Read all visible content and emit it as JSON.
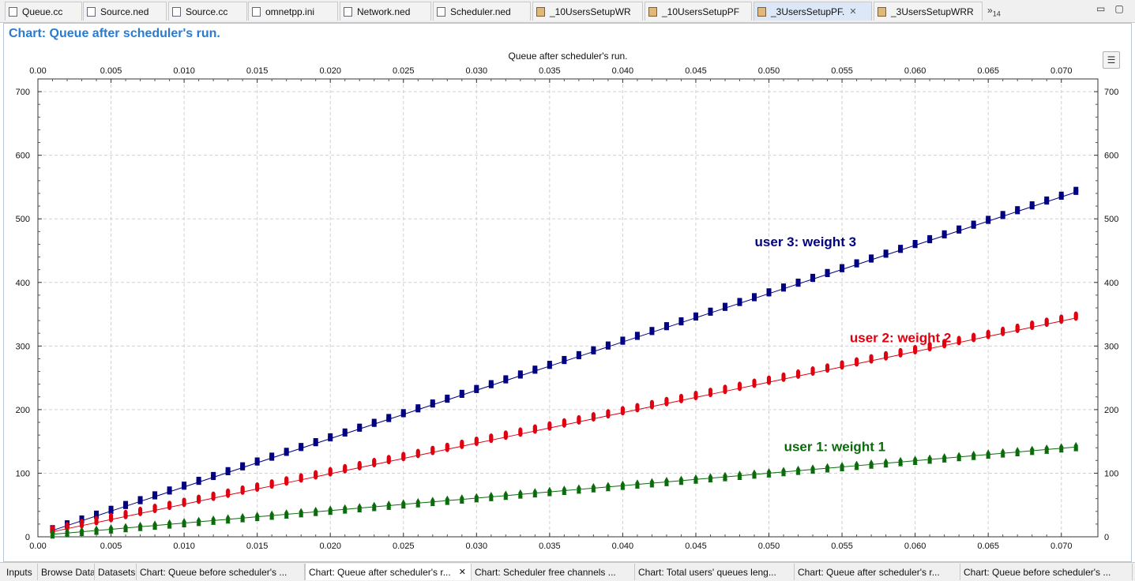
{
  "editor_tabs": [
    {
      "label": "Queue.cc",
      "icon": "source-file-icon"
    },
    {
      "label": "Source.ned",
      "icon": "ned-file-icon"
    },
    {
      "label": "Source.cc",
      "icon": "source-file-icon"
    },
    {
      "label": "omnetpp.ini",
      "icon": "ini-file-icon"
    },
    {
      "label": "Network.ned",
      "icon": "ned-file-icon"
    },
    {
      "label": "Scheduler.ned",
      "icon": "ned-file-icon"
    },
    {
      "label": "_10UsersSetupWR",
      "icon": "analysis-file-icon"
    },
    {
      "label": "_10UsersSetupPF",
      "icon": "analysis-file-icon"
    },
    {
      "label": "_3UsersSetupPF.",
      "icon": "analysis-file-icon",
      "active": true
    },
    {
      "label": "_3UsersSetupWRR",
      "icon": "analysis-file-icon"
    }
  ],
  "overflow_marker": "»",
  "overflow_count": "14",
  "window_controls": {
    "minimize": "▭",
    "maximize": "▢"
  },
  "chart_header": "Chart: Queue after scheduler's run.",
  "legend_button_icon": "☰",
  "bottom_tabs": [
    {
      "label": "Inputs"
    },
    {
      "label": "Browse Data"
    },
    {
      "label": "Datasets"
    },
    {
      "label": "Chart: Queue before scheduler's ..."
    },
    {
      "label": "Chart: Queue after scheduler's r...",
      "active": true
    },
    {
      "label": "Chart: Scheduler free channels ..."
    },
    {
      "label": "Chart: Total users' queues leng..."
    },
    {
      "label": "Chart: Queue after scheduler's r..."
    },
    {
      "label": "Chart: Queue before scheduler's ..."
    }
  ],
  "close_glyph": "✕",
  "chart_data": {
    "type": "line",
    "title": "Queue after scheduler's run.",
    "xlabel": "",
    "ylabel": "",
    "xlim": [
      0,
      0.0725
    ],
    "ylim": [
      0,
      720
    ],
    "x_ticks": [
      0.0,
      0.005,
      0.01,
      0.015,
      0.02,
      0.025,
      0.03,
      0.035,
      0.04,
      0.045,
      0.05,
      0.055,
      0.06,
      0.065,
      0.07
    ],
    "x_tick_labels": [
      "0.00",
      "0.005",
      "0.010",
      "0.015",
      "0.020",
      "0.025",
      "0.030",
      "0.035",
      "0.040",
      "0.045",
      "0.050",
      "0.055",
      "0.060",
      "0.065",
      "0.070"
    ],
    "y_ticks": [
      0,
      100,
      200,
      300,
      400,
      500,
      600,
      700
    ],
    "y_tick_labels": [
      "0",
      "100",
      "200",
      "300",
      "400",
      "500",
      "600",
      "700"
    ],
    "grid": true,
    "mirror_axes": true,
    "x_sampling": {
      "start": 0.001,
      "step": 0.001,
      "count": 71
    },
    "series": [
      {
        "color": "#000080",
        "marker": "square",
        "start": 10,
        "slope_per_ms": 7.6,
        "cluster": [
          0,
          1
        ],
        "cluster_spacing": 4
      },
      {
        "color": "#e0000f",
        "marker": "capsule",
        "start": 8,
        "slope_per_ms": 4.8,
        "cluster": [
          0,
          1,
          2,
          3
        ],
        "cluster_spacing": 2
      },
      {
        "color": "#0a6b0a",
        "marker": "triangle",
        "start": 4,
        "slope_per_ms": 1.96,
        "cluster": [
          -2,
          -1,
          0,
          1,
          2
        ],
        "cluster_spacing": 2
      }
    ],
    "annotations": [
      {
        "text": "user 3: weight 3",
        "x": 0.0525,
        "y": 457,
        "color": "#000080"
      },
      {
        "text": "user 2: weight 2",
        "x": 0.059,
        "y": 306,
        "color": "#e0000f"
      },
      {
        "text": "user 1: weight 1",
        "x": 0.0545,
        "y": 135,
        "color": "#0a6b0a"
      }
    ]
  }
}
